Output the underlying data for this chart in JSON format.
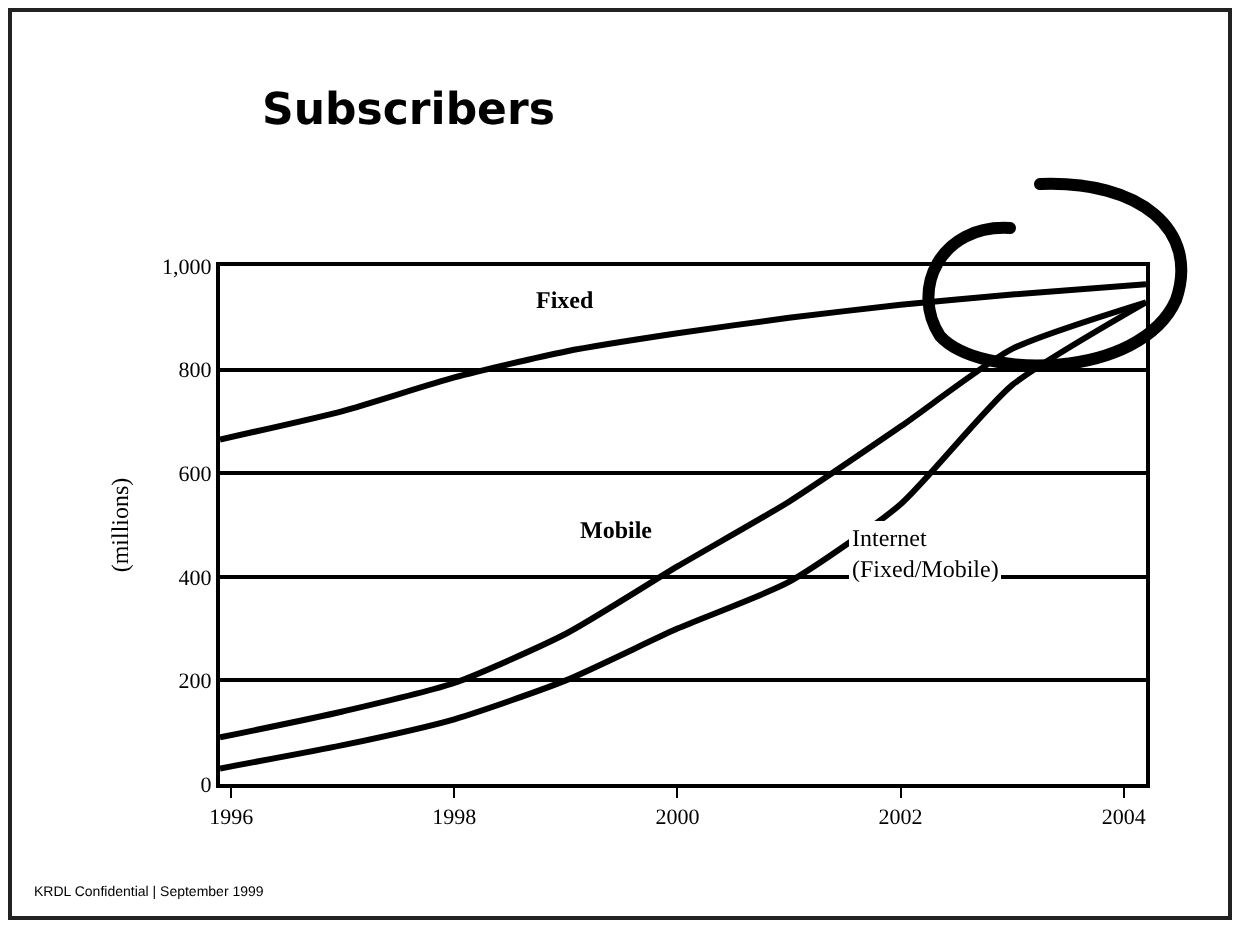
{
  "chart_data": {
    "type": "line",
    "title": "Subscribers",
    "ylabel": "(millions)",
    "annotations": [
      "KRDL Confidential | September 1999"
    ],
    "series": [
      {
        "name": "Fixed",
        "color": "#000000",
        "x": [
          1995.9,
          1997,
          1998,
          1999,
          2000,
          2001,
          2002,
          2003,
          2004.2
        ],
        "values": [
          665,
          720,
          785,
          835,
          870,
          900,
          925,
          945,
          965
        ]
      },
      {
        "name": "Mobile",
        "color": "#000000",
        "x": [
          1995.9,
          1997,
          1998,
          1999,
          2000,
          2001,
          2002,
          2003,
          2004.2
        ],
        "values": [
          90,
          140,
          195,
          290,
          420,
          545,
          690,
          840,
          930
        ]
      },
      {
        "name": "Internet (Fixed/Mobile)",
        "color": "#000000",
        "x": [
          1995.9,
          1997,
          1998,
          1999,
          2000,
          2001,
          2002,
          2003,
          2004.2
        ],
        "values": [
          30,
          75,
          125,
          200,
          300,
          390,
          540,
          770,
          930
        ]
      }
    ],
    "xlim": [
      1995.9,
      2004.2
    ],
    "xticks": [
      1996,
      1998,
      2000,
      2002,
      2004
    ],
    "ylim": [
      0,
      1000
    ],
    "yticks": [
      0,
      200,
      400,
      600,
      800,
      {
        "value": 1000,
        "label": "1,000"
      }
    ],
    "grid": "y",
    "legend": false,
    "marker": "none",
    "line_style": "solid"
  }
}
